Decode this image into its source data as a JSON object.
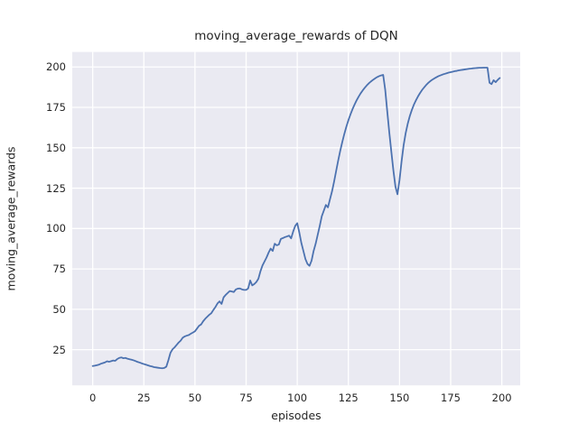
{
  "chart_data": {
    "type": "line",
    "title": "moving_average_rewards of DQN",
    "xlabel": "episodes",
    "ylabel": "moving_average_rewards",
    "x_ticks": [
      0,
      25,
      50,
      75,
      100,
      125,
      150,
      175,
      200
    ],
    "y_ticks": [
      25,
      50,
      75,
      100,
      125,
      150,
      175,
      200
    ],
    "xlim": [
      -10.0,
      209.0
    ],
    "ylim": [
      2.9,
      209.3
    ],
    "grid": true,
    "legend_position": "none",
    "style": "seaborn-darkgrid",
    "series": [
      {
        "name": "moving_average_rewards",
        "color": "#4c72b0",
        "x0": 0,
        "dx": 1,
        "values": [
          14.9,
          15.1,
          15.4,
          15.7,
          16.3,
          16.7,
          17.1,
          17.8,
          17.5,
          17.9,
          18.3,
          18.1,
          19.2,
          19.9,
          20.2,
          19.7,
          19.9,
          19.4,
          19.1,
          18.8,
          18.4,
          17.9,
          17.4,
          17.0,
          16.5,
          16.1,
          15.7,
          15.3,
          14.9,
          14.6,
          14.2,
          14.0,
          13.8,
          13.6,
          13.5,
          13.7,
          14.5,
          18.5,
          23.0,
          25.2,
          26.4,
          27.9,
          29.4,
          30.6,
          32.4,
          33.2,
          33.7,
          34.1,
          34.9,
          35.6,
          36.4,
          38.1,
          39.8,
          40.6,
          42.6,
          44.1,
          45.4,
          46.6,
          47.6,
          49.6,
          51.4,
          53.6,
          54.9,
          53.3,
          57.4,
          58.9,
          60.1,
          61.3,
          61.0,
          60.7,
          62.3,
          62.8,
          62.9,
          62.3,
          62.0,
          62.0,
          62.9,
          67.8,
          64.8,
          65.6,
          66.9,
          68.9,
          73.5,
          77.1,
          79.6,
          82.1,
          85.1,
          87.6,
          86.1,
          90.6,
          89.6,
          90.1,
          93.6,
          94.1,
          94.7,
          95.1,
          95.6,
          93.9,
          98.1,
          101.6,
          103.3,
          97.6,
          91.1,
          86.1,
          81.1,
          78.1,
          76.9,
          80.1,
          86.1,
          90.6,
          96.1,
          101.6,
          107.6,
          111.1,
          114.6,
          113.1,
          118.1,
          123.0,
          129.0,
          135.5,
          142.0,
          148.0,
          153.5,
          158.5,
          163.0,
          167.0,
          170.6,
          173.8,
          176.7,
          179.3,
          181.6,
          183.7,
          185.5,
          187.1,
          188.6,
          189.9,
          191.0,
          192.0,
          192.9,
          193.7,
          194.3,
          194.8,
          195.1,
          186.0,
          172.5,
          159.5,
          147.5,
          136.0,
          126.0,
          121.2,
          130.0,
          141.5,
          151.5,
          159.0,
          164.8,
          169.5,
          173.3,
          176.6,
          179.3,
          181.7,
          183.8,
          185.7,
          187.3,
          188.8,
          190.1,
          191.2,
          192.1,
          192.9,
          193.6,
          194.3,
          194.8,
          195.3,
          195.7,
          196.1,
          196.5,
          196.8,
          197.1,
          197.4,
          197.6,
          197.9,
          198.1,
          198.3,
          198.5,
          198.7,
          198.9,
          199.0,
          199.2,
          199.3,
          199.4,
          199.5,
          199.5,
          199.6,
          199.6,
          199.6,
          190.2,
          189.4,
          191.8,
          190.6,
          192.0,
          193.2
        ]
      }
    ]
  },
  "colors": {
    "figure_bg": "#ffffff",
    "axes_bg": "#eaeaf2",
    "grid": "#ffffff",
    "text": "#262626",
    "line": "#4c72b0"
  }
}
